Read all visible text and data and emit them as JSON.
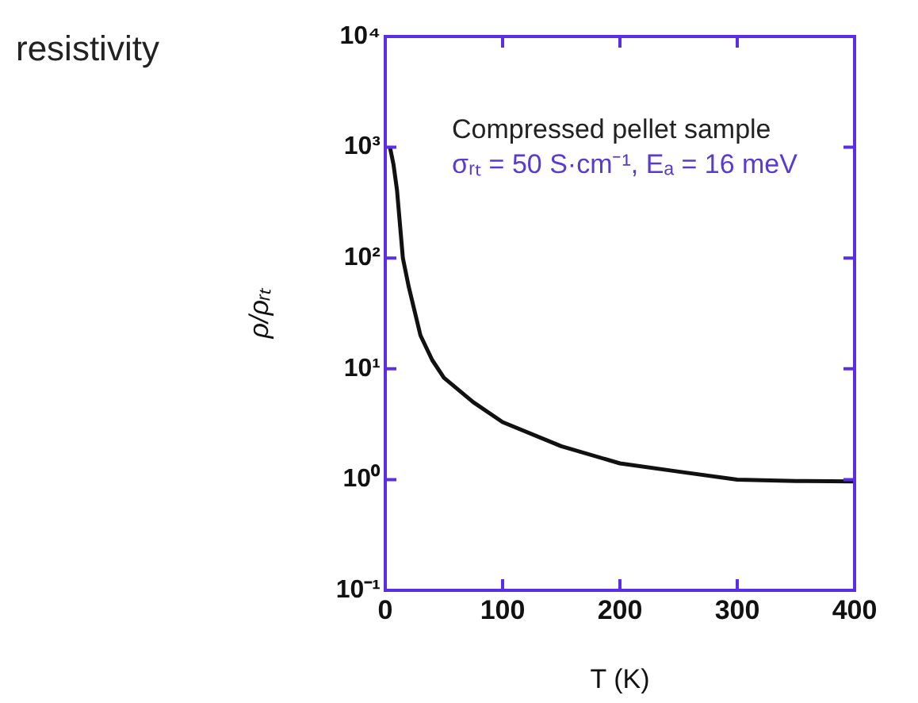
{
  "chart_data": {
    "type": "line",
    "title": "resistivity",
    "xlabel": "T (K)",
    "ylabel": "ρ/ρᵣₜ",
    "annotations": [
      "Compressed pellet sample",
      "σᵣₜ = 50 S·cm⁻¹, Eₐ = 16 meV"
    ],
    "x": [
      4,
      7,
      10,
      15,
      20,
      30,
      40,
      50,
      75,
      100,
      150,
      200,
      250,
      300,
      350,
      400
    ],
    "series": [
      {
        "color": "#111111",
        "values": [
          1000,
          700,
          410,
          100,
          55,
          20,
          12,
          8.3,
          5,
          3.3,
          2,
          1.4,
          1.18,
          1.0,
          0.97,
          0.96
        ]
      }
    ],
    "log": "y",
    "xlim": [
      0,
      400
    ],
    "ylim": [
      0.1,
      10000
    ],
    "xticks": [
      0,
      100,
      200,
      300,
      400
    ],
    "yticks": [
      {
        "value": 0.1,
        "label": "10⁻¹"
      },
      {
        "value": 1,
        "label": "10⁰"
      },
      {
        "value": 10,
        "label": "10¹"
      },
      {
        "value": 100,
        "label": "10²"
      },
      {
        "value": 1000,
        "label": "10³"
      },
      {
        "value": 10000,
        "label": "10⁴"
      }
    ],
    "grid": false,
    "legend": false,
    "marker": "none",
    "line_style": "solid"
  }
}
